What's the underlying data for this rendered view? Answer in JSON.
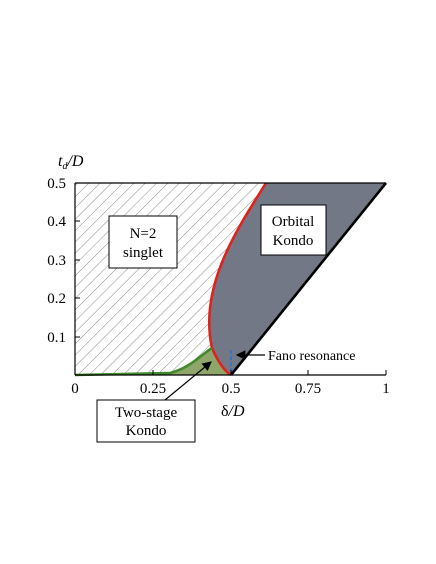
{
  "axes": {
    "y_label_main": "t",
    "y_label_sub": "d",
    "y_label_tail": "/D",
    "x_label_main": "δ",
    "x_label_tail": "/D",
    "x_ticks": [
      "0",
      "0.25",
      "0.5",
      "0.75",
      "1"
    ],
    "y_ticks": [
      "0.5",
      "0.4",
      "0.3",
      "0.2",
      "0.1"
    ]
  },
  "regions": {
    "singlet_line1": "N=2",
    "singlet_line2": "singlet",
    "orbital_line1": "Orbital",
    "orbital_line2": "Kondo",
    "twostage_line1": "Two-stage",
    "twostage_line2": "Kondo",
    "fano": "Fano resonance"
  },
  "colors": {
    "orbital_fill": "#727886",
    "twostage_fill": "#8fa66a",
    "boundary_red": "#e0221c",
    "boundary_green": "#3f8a2c",
    "fano_line": "#3a72c4"
  }
}
